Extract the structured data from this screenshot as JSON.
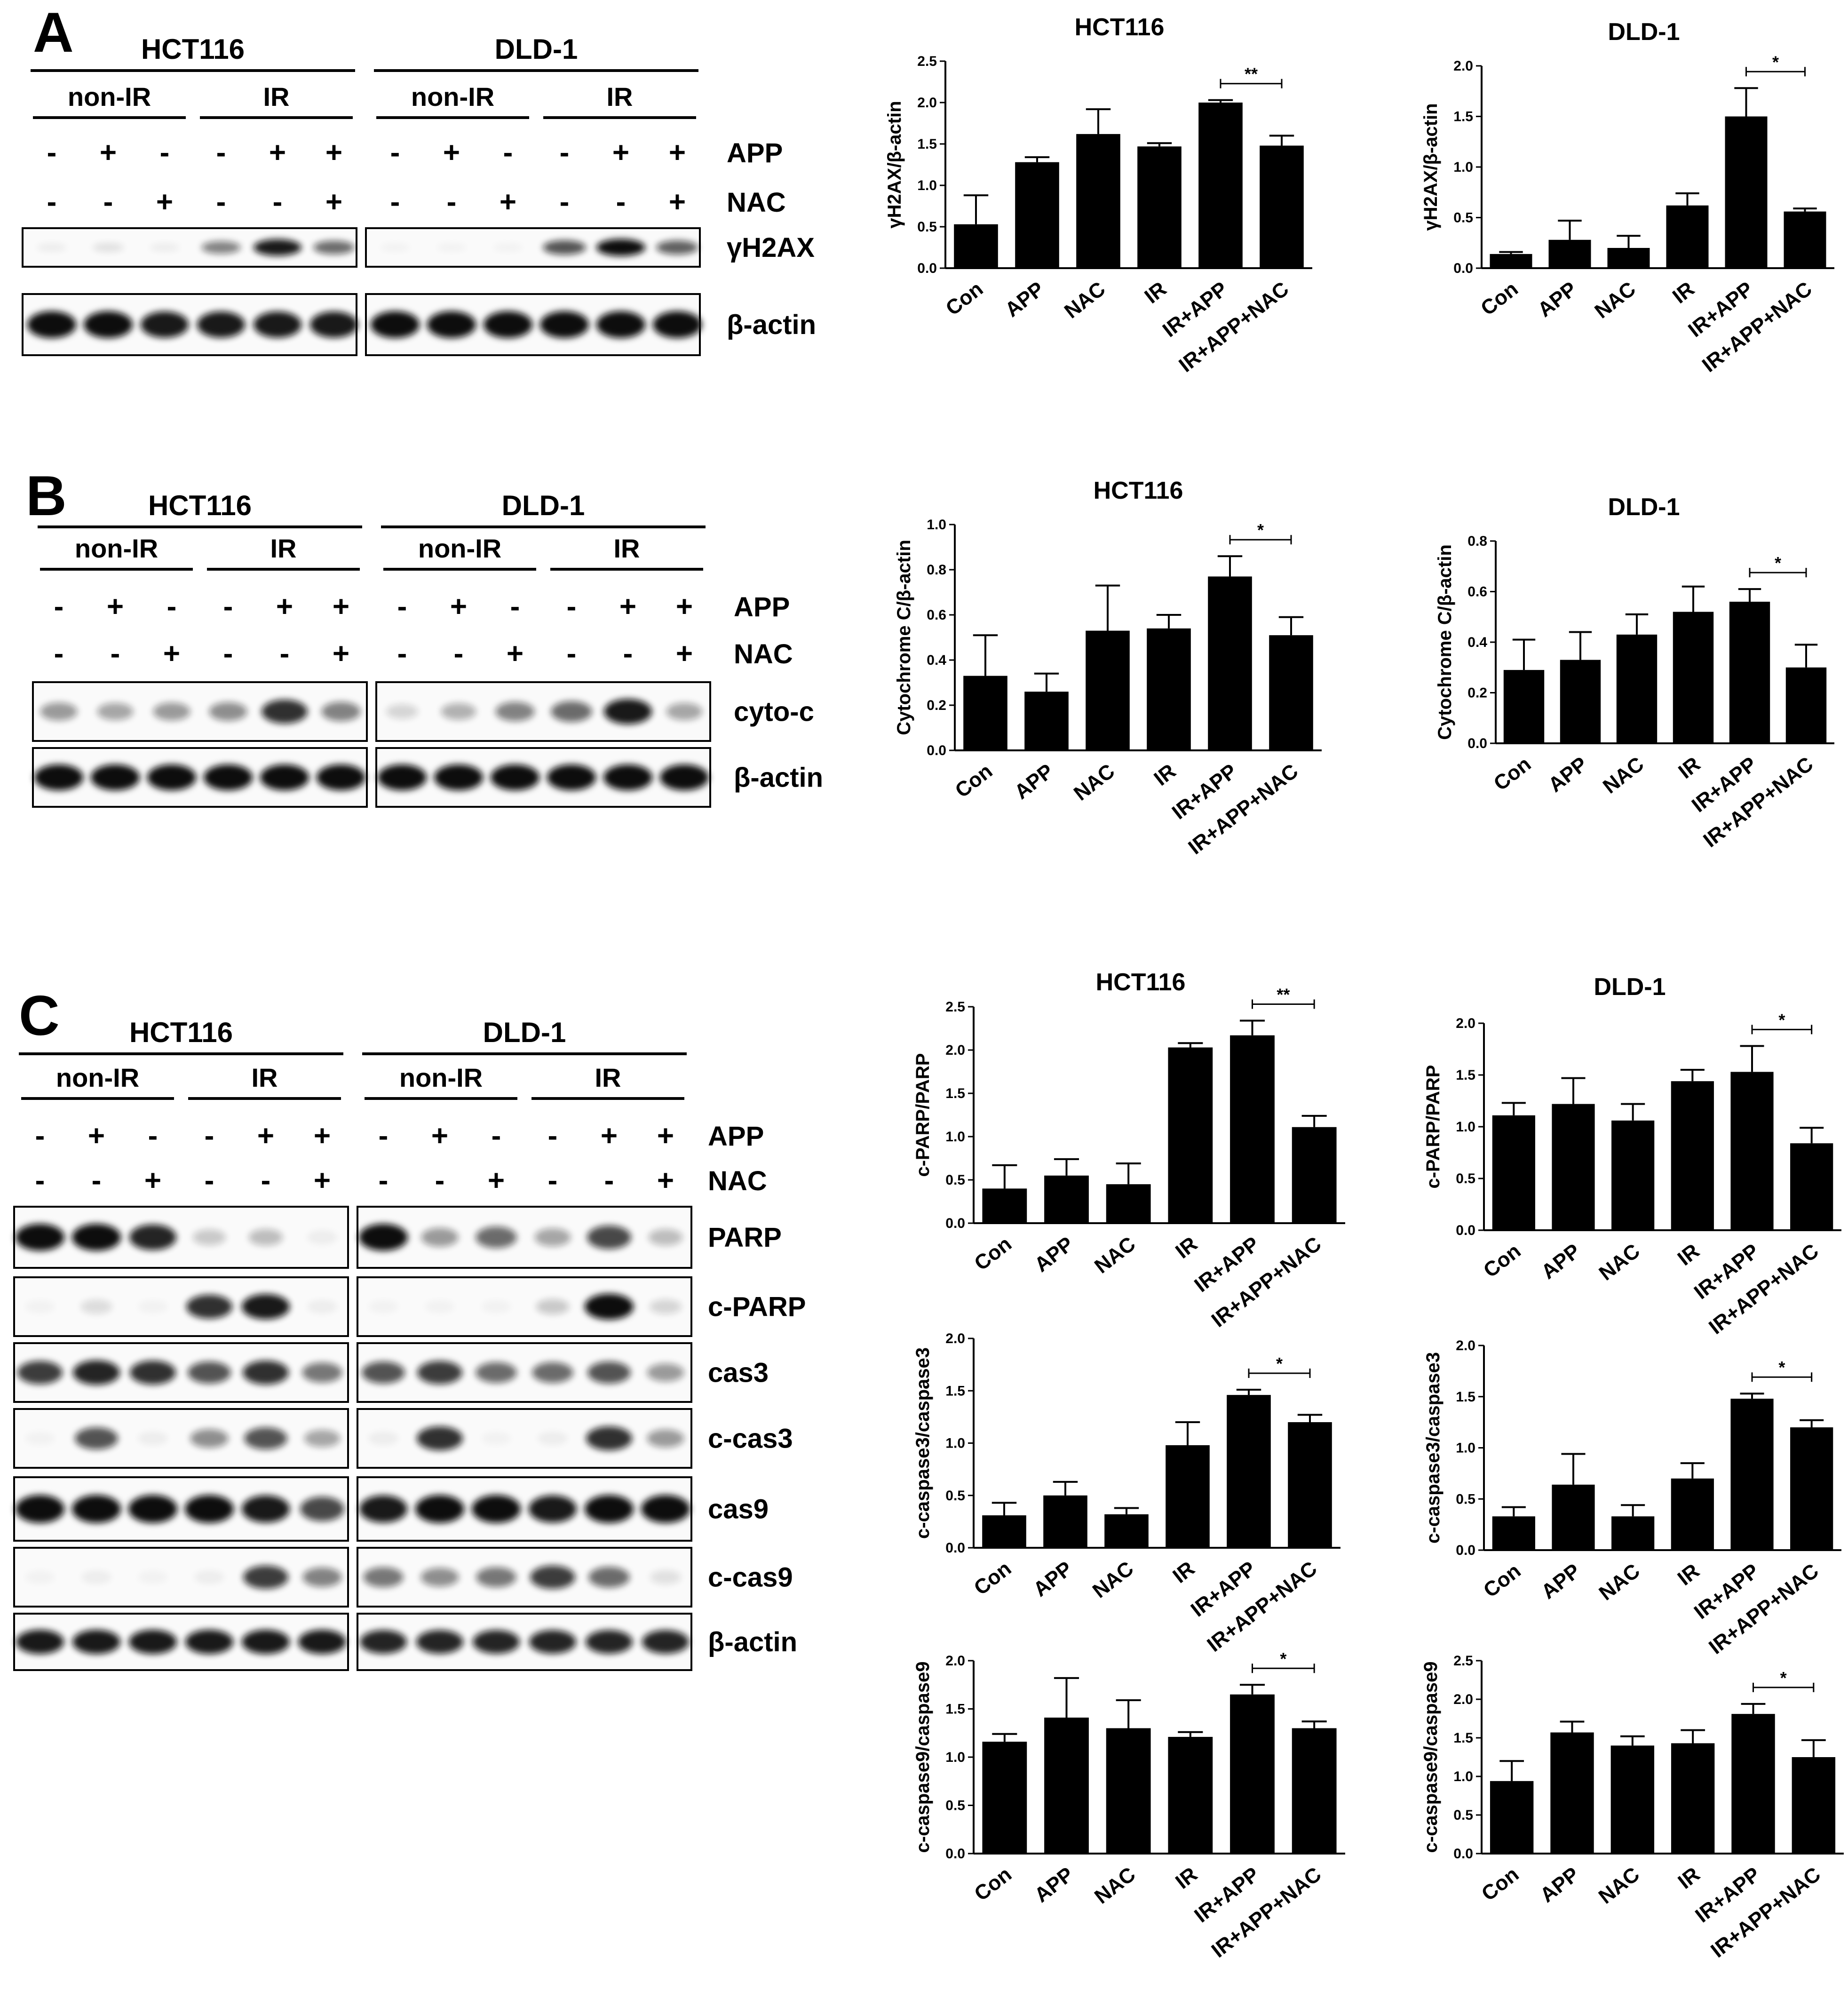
{
  "panels": [
    {
      "letter": "A",
      "blot": {
        "groups": [
          {
            "cell": "HCT116",
            "cond": [
              "non-IR",
              "IR"
            ]
          },
          {
            "cell": "DLD-1",
            "cond": [
              "non-IR",
              "IR"
            ]
          }
        ],
        "signs": [
          {
            "label": "APP",
            "values": [
              "-",
              "+",
              "-",
              "-",
              "+",
              "+"
            ]
          },
          {
            "label": "NAC",
            "values": [
              "-",
              "-",
              "+",
              "-",
              "-",
              "+"
            ]
          }
        ],
        "rows": [
          "γH2AX",
          "β-actin"
        ]
      },
      "charts": [
        {
          "title": "HCT116",
          "ylabel": "γH2AX/β-actin"
        },
        {
          "title": "DLD-1",
          "ylabel": "γH2AX/β-actin"
        }
      ]
    },
    {
      "letter": "B",
      "blot": {
        "groups": [
          {
            "cell": "HCT116",
            "cond": [
              "non-IR",
              "IR"
            ]
          },
          {
            "cell": "DLD-1",
            "cond": [
              "non-IR",
              "IR"
            ]
          }
        ],
        "signs": [
          {
            "label": "APP",
            "values": [
              "-",
              "+",
              "-",
              "-",
              "+",
              "+"
            ]
          },
          {
            "label": "NAC",
            "values": [
              "-",
              "-",
              "+",
              "-",
              "-",
              "+"
            ]
          }
        ],
        "rows": [
          "cyto-c",
          "β-actin"
        ]
      },
      "charts": [
        {
          "title": "HCT116",
          "ylabel": "Cytochrome C/β-actin"
        },
        {
          "title": "DLD-1",
          "ylabel": "Cytochrome C/β-actin"
        }
      ]
    },
    {
      "letter": "C",
      "blot": {
        "groups": [
          {
            "cell": "HCT116",
            "cond": [
              "non-IR",
              "IR"
            ]
          },
          {
            "cell": "DLD-1",
            "cond": [
              "non-IR",
              "IR"
            ]
          }
        ],
        "signs": [
          {
            "label": "APP",
            "values": [
              "-",
              "+",
              "-",
              "-",
              "+",
              "+"
            ]
          },
          {
            "label": "NAC",
            "values": [
              "-",
              "-",
              "+",
              "-",
              "-",
              "+"
            ]
          }
        ],
        "rows": [
          "PARP",
          "c-PARP",
          "cas3",
          "c-cas3",
          "cas9",
          "c-cas9",
          "β-actin"
        ]
      },
      "charts": [
        {
          "title": "HCT116",
          "ylabel": "c-PARP/PARP"
        },
        {
          "title": "DLD-1",
          "ylabel": "c-PARP/PARP"
        },
        {
          "title": "",
          "ylabel": "c-caspase3/caspase3"
        },
        {
          "title": "",
          "ylabel": "c-caspase3/caspase3"
        },
        {
          "title": "",
          "ylabel": "c-caspase9/caspase9"
        },
        {
          "title": "",
          "ylabel": "c-caspase9/caspase9"
        }
      ]
    }
  ],
  "chart_data": [
    {
      "type": "bar",
      "title": "HCT116",
      "ylabel": "γH2AX/β-actin",
      "categories": [
        "Con",
        "APP",
        "NAC",
        "IR",
        "IR+APP",
        "IR+APP+NAC"
      ],
      "values": [
        0.53,
        1.28,
        1.62,
        1.47,
        2.0,
        1.48
      ],
      "errors": [
        0.35,
        0.06,
        0.3,
        0.04,
        0.03,
        0.12
      ],
      "ylim": [
        0,
        2.5
      ],
      "ticks": [
        "0.0",
        "0.5",
        "1.0",
        "1.5",
        "2.0",
        "2.5"
      ],
      "sig": {
        "from": 4,
        "to": 5,
        "label": "**"
      }
    },
    {
      "type": "bar",
      "title": "DLD-1",
      "ylabel": "γH2AX/β-actin",
      "categories": [
        "Con",
        "APP",
        "NAC",
        "IR",
        "IR+APP",
        "IR+APP+NAC"
      ],
      "values": [
        0.14,
        0.28,
        0.2,
        0.62,
        1.5,
        0.56
      ],
      "errors": [
        0.02,
        0.19,
        0.12,
        0.12,
        0.28,
        0.03
      ],
      "ylim": [
        0,
        2.0
      ],
      "ticks": [
        "0.0",
        "0.5",
        "1.0",
        "1.5",
        "2.0"
      ],
      "sig": {
        "from": 4,
        "to": 5,
        "label": "*"
      }
    },
    {
      "type": "bar",
      "title": "HCT116",
      "ylabel": "Cytochrome C/β-actin",
      "categories": [
        "Con",
        "APP",
        "NAC",
        "IR",
        "IR+APP",
        "IR+APP+NAC"
      ],
      "values": [
        0.33,
        0.26,
        0.53,
        0.54,
        0.77,
        0.51
      ],
      "errors": [
        0.18,
        0.08,
        0.2,
        0.06,
        0.09,
        0.08
      ],
      "ylim": [
        0,
        1.0
      ],
      "ticks": [
        "0.0",
        "0.2",
        "0.4",
        "0.6",
        "0.8",
        "1.0"
      ],
      "sig": {
        "from": 4,
        "to": 5,
        "label": "*"
      }
    },
    {
      "type": "bar",
      "title": "DLD-1",
      "ylabel": "Cytochrome C/β-actin",
      "categories": [
        "Con",
        "APP",
        "NAC",
        "IR",
        "IR+APP",
        "IR+APP+NAC"
      ],
      "values": [
        0.29,
        0.33,
        0.43,
        0.52,
        0.56,
        0.3
      ],
      "errors": [
        0.12,
        0.11,
        0.08,
        0.1,
        0.05,
        0.09
      ],
      "ylim": [
        0,
        0.8
      ],
      "ticks": [
        "0.0",
        "0.2",
        "0.4",
        "0.6",
        "0.8"
      ],
      "sig": {
        "from": 4,
        "to": 5,
        "label": "*"
      }
    },
    {
      "type": "bar",
      "title": "HCT116",
      "ylabel": "c-PARP/PARP",
      "categories": [
        "Con",
        "APP",
        "NAC",
        "IR",
        "IR+APP",
        "IR+APP+NAC"
      ],
      "values": [
        0.4,
        0.55,
        0.45,
        2.03,
        2.17,
        1.11
      ],
      "errors": [
        0.27,
        0.19,
        0.24,
        0.05,
        0.17,
        0.13
      ],
      "ylim": [
        0,
        2.5
      ],
      "ticks": [
        "0.0",
        "0.5",
        "1.0",
        "1.5",
        "2.0",
        "2.5"
      ],
      "sig": {
        "from": 4,
        "to": 5,
        "label": "**"
      }
    },
    {
      "type": "bar",
      "title": "DLD-1",
      "ylabel": "c-PARP/PARP",
      "categories": [
        "Con",
        "APP",
        "NAC",
        "IR",
        "IR+APP",
        "IR+APP+NAC"
      ],
      "values": [
        1.11,
        1.22,
        1.06,
        1.44,
        1.53,
        0.84
      ],
      "errors": [
        0.12,
        0.25,
        0.16,
        0.11,
        0.25,
        0.15
      ],
      "ylim": [
        0,
        2.0
      ],
      "ticks": [
        "0.0",
        "0.5",
        "1.0",
        "1.5",
        "2.0"
      ],
      "sig": {
        "from": 4,
        "to": 5,
        "label": "*"
      }
    },
    {
      "type": "bar",
      "title": "",
      "ylabel": "c-caspase3/caspase3",
      "categories": [
        "Con",
        "APP",
        "NAC",
        "IR",
        "IR+APP",
        "IR+APP+NAC"
      ],
      "values": [
        0.31,
        0.5,
        0.32,
        0.98,
        1.46,
        1.2
      ],
      "errors": [
        0.12,
        0.13,
        0.06,
        0.22,
        0.05,
        0.07
      ],
      "ylim": [
        0,
        2.0
      ],
      "ticks": [
        "0.0",
        "0.5",
        "1.0",
        "1.5",
        "2.0"
      ],
      "sig": {
        "from": 4,
        "to": 5,
        "label": "*"
      }
    },
    {
      "type": "bar",
      "title": "",
      "ylabel": "c-caspase3/caspase3",
      "categories": [
        "Con",
        "APP",
        "NAC",
        "IR",
        "IR+APP",
        "IR+APP+NAC"
      ],
      "values": [
        0.33,
        0.64,
        0.33,
        0.7,
        1.48,
        1.2
      ],
      "errors": [
        0.09,
        0.3,
        0.11,
        0.15,
        0.05,
        0.07
      ],
      "ylim": [
        0,
        2.0
      ],
      "ticks": [
        "0.0",
        "0.5",
        "1.0",
        "1.5",
        "2.0"
      ],
      "sig": {
        "from": 4,
        "to": 5,
        "label": "*"
      }
    },
    {
      "type": "bar",
      "title": "",
      "ylabel": "c-caspase9/caspase9",
      "categories": [
        "Con",
        "APP",
        "NAC",
        "IR",
        "IR+APP",
        "IR+APP+NAC"
      ],
      "values": [
        1.16,
        1.41,
        1.3,
        1.21,
        1.65,
        1.3
      ],
      "errors": [
        0.08,
        0.41,
        0.29,
        0.05,
        0.1,
        0.07
      ],
      "ylim": [
        0,
        2.0
      ],
      "ticks": [
        "0.0",
        "0.5",
        "1.0",
        "1.5",
        "2.0"
      ],
      "sig": {
        "from": 4,
        "to": 5,
        "label": "*"
      }
    },
    {
      "type": "bar",
      "title": "",
      "ylabel": "c-caspase9/caspase9",
      "categories": [
        "Con",
        "APP",
        "NAC",
        "IR",
        "IR+APP",
        "IR+APP+NAC"
      ],
      "values": [
        0.94,
        1.57,
        1.4,
        1.43,
        1.81,
        1.25
      ],
      "errors": [
        0.26,
        0.14,
        0.12,
        0.17,
        0.13,
        0.22
      ],
      "ylim": [
        0,
        2.5
      ],
      "ticks": [
        "0.0",
        "0.5",
        "1.0",
        "1.5",
        "2.0",
        "2.5"
      ],
      "sig": {
        "from": 4,
        "to": 5,
        "label": "*"
      }
    }
  ],
  "colors": {
    "bar": "#000000",
    "axis": "#000000",
    "background": "#ffffff",
    "blot_band": "#111111",
    "blot_bg": "#fafafa"
  }
}
